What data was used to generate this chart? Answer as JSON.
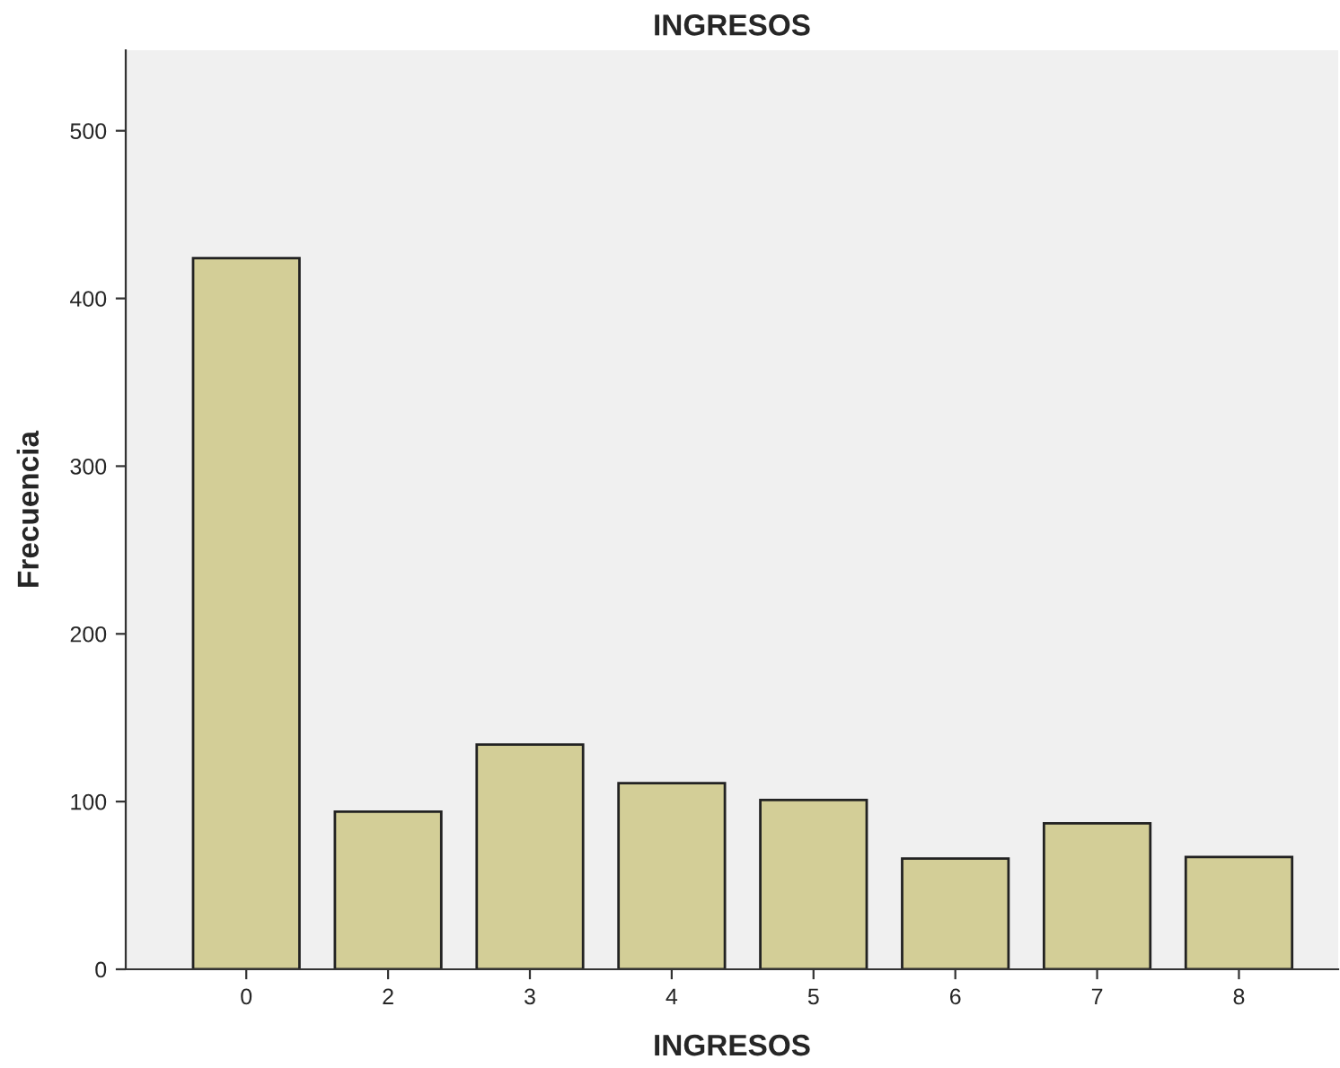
{
  "chart_data": {
    "type": "bar",
    "title": "INGRESOS",
    "xlabel": "INGRESOS",
    "ylabel": "Frecuencia",
    "categories": [
      "0",
      "2",
      "3",
      "4",
      "5",
      "6",
      "7",
      "8"
    ],
    "values": [
      424,
      94,
      134,
      111,
      101,
      66,
      87,
      67
    ],
    "color": "#d3ce97",
    "ylim": [
      0,
      548
    ],
    "yticks": [
      0,
      100,
      200,
      300,
      400,
      500
    ],
    "grid": false
  }
}
